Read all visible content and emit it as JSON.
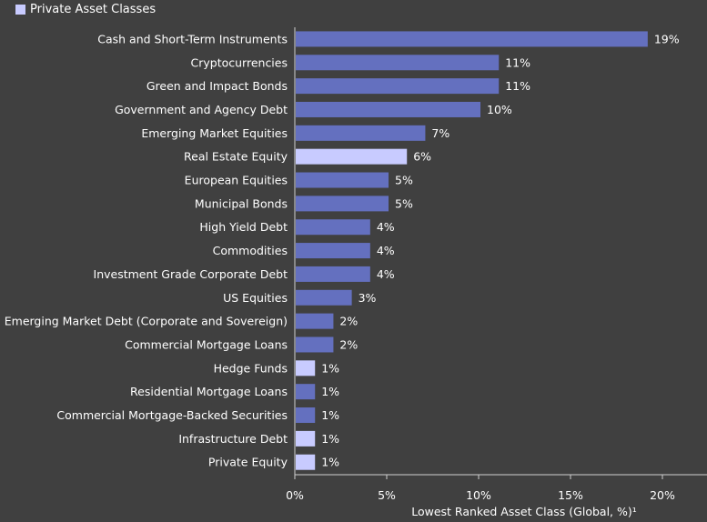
{
  "legend": {
    "label": "Private Asset Classes",
    "color": "#c8cbff"
  },
  "chart_data": {
    "type": "bar",
    "orientation": "horizontal",
    "xlabel": "Lowest Ranked Asset Class (Global, %)¹",
    "xlim": [
      0,
      22
    ],
    "xticks": [
      0,
      5,
      10,
      15,
      20
    ],
    "xtick_labels": [
      "0%",
      "5%",
      "10%",
      "15%",
      "20%"
    ],
    "grid": false,
    "legend_position": "top-left",
    "colors": {
      "public": "#6470bf",
      "private": "#c8cbff"
    },
    "categories": [
      "Cash and Short-Term Instruments",
      "Cryptocurrencies",
      "Green and Impact Bonds",
      "Government and Agency Debt",
      "Emerging Market Equities",
      "Real Estate Equity",
      "European Equities",
      "Municipal Bonds",
      "High Yield Debt",
      "Commodities",
      "Investment Grade Corporate Debt",
      "US Equities",
      "Emerging Market Debt (Corporate and Sovereign)",
      "Commercial Mortgage Loans",
      "Hedge Funds",
      "Residential Mortgage Loans",
      "Commercial Mortgage-Backed Securities",
      "Infrastructure Debt",
      "Private Equity"
    ],
    "values": [
      19.2,
      11.1,
      11.1,
      10.1,
      7.1,
      6.1,
      5.1,
      5.1,
      4.1,
      4.1,
      4.1,
      3.1,
      2.1,
      2.1,
      1.1,
      1.1,
      1.1,
      1.1,
      1.1
    ],
    "value_labels": [
      "19%",
      "11%",
      "11%",
      "10%",
      "7%",
      "6%",
      "5%",
      "5%",
      "4%",
      "4%",
      "4%",
      "3%",
      "2%",
      "2%",
      "1%",
      "1%",
      "1%",
      "1%",
      "1%"
    ],
    "private": [
      false,
      false,
      false,
      false,
      false,
      true,
      false,
      false,
      false,
      false,
      false,
      false,
      false,
      false,
      true,
      false,
      false,
      true,
      true
    ]
  }
}
